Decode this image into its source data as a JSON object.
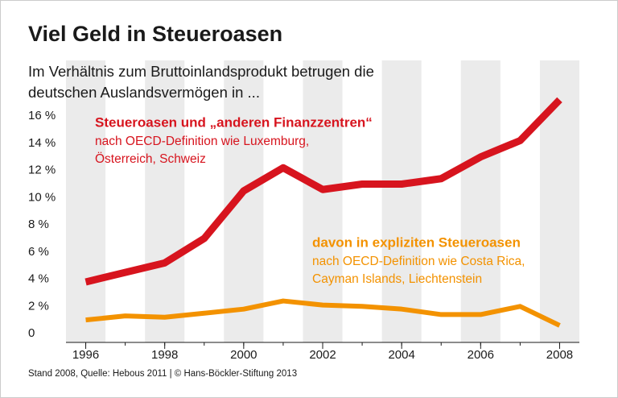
{
  "chart_data": {
    "type": "line",
    "title": "Viel Geld in Steueroasen",
    "subtitle": [
      "Im Verhältnis zum Bruttoinlandsprodukt betrugen die",
      "deutschen Auslandsvermögen in ..."
    ],
    "x": [
      1996,
      1997,
      1998,
      1999,
      2000,
      2001,
      2002,
      2003,
      2004,
      2005,
      2006,
      2007,
      2008
    ],
    "series": [
      {
        "name": "Steueroasen und „anderen Finanzzentren“",
        "description": [
          "nach OECD-Definition wie Luxemburg,",
          "Österreich, Schweiz"
        ],
        "color": "#d7141e",
        "values": [
          3.8,
          4.5,
          5.2,
          7.0,
          10.5,
          12.2,
          10.6,
          11.0,
          11.0,
          11.4,
          13.0,
          14.2,
          17.2
        ]
      },
      {
        "name": "davon in expliziten Steueroasen",
        "description": [
          "nach OECD-Definition wie Costa Rica,",
          "Cayman Islands, Liechtenstein"
        ],
        "color": "#f39200",
        "values": [
          1.0,
          1.3,
          1.2,
          1.5,
          1.8,
          2.4,
          2.1,
          2.0,
          1.8,
          1.4,
          1.4,
          2.0,
          0.6
        ]
      }
    ],
    "xlim": [
      1995.5,
      2008.5
    ],
    "xticks": [
      1996,
      1998,
      2000,
      2002,
      2004,
      2006,
      2008
    ],
    "ylim": [
      -0.65,
      20.1
    ],
    "yticks": [
      0,
      {
        "value": 2,
        "label": "2 %"
      },
      {
        "value": 4,
        "label": "4 %"
      },
      {
        "value": 6,
        "label": "6 %"
      },
      {
        "value": 8,
        "label": "8 %"
      },
      {
        "value": 10,
        "label": "10 %"
      },
      {
        "value": 12,
        "label": "12 %"
      },
      {
        "value": 14,
        "label": "14 %"
      },
      {
        "value": 16,
        "label": "16 %"
      }
    ],
    "source": "Stand 2008, Quelle: Hebous 2011 | © Hans-Böckler-Stiftung 2013"
  }
}
